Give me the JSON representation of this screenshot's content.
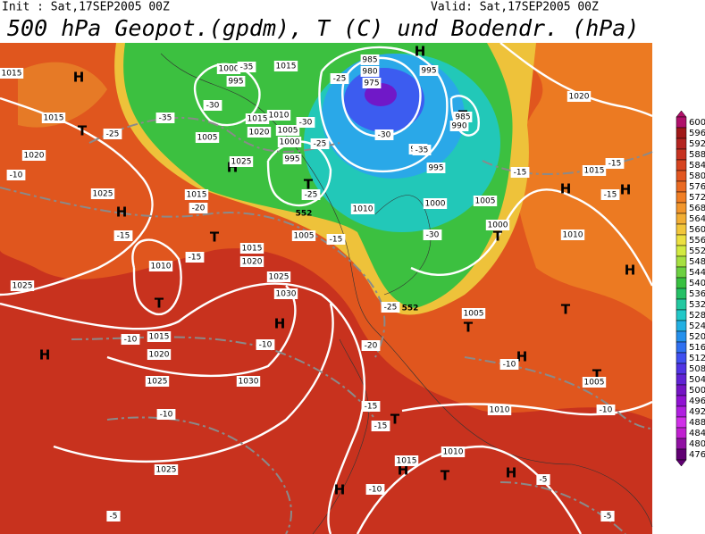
{
  "header": {
    "init": "Init : Sat,17SEP2005 00Z",
    "valid": "Valid: Sat,17SEP2005 00Z",
    "title": "500 hPa Geopot.(gpdm), T (C) und Bodendr. (hPa)"
  },
  "colorbar": {
    "labels": [
      "600",
      "596",
      "592",
      "588",
      "584",
      "580",
      "576",
      "572",
      "568",
      "564",
      "560",
      "556",
      "552",
      "548",
      "544",
      "540",
      "536",
      "532",
      "528",
      "524",
      "520",
      "516",
      "512",
      "508",
      "504",
      "500",
      "496",
      "492",
      "488",
      "484",
      "480",
      "476"
    ]
  },
  "map": {
    "labels": [
      "H",
      "T",
      "H",
      "T",
      "T",
      "H",
      "H",
      "H",
      "T",
      "H",
      "T",
      "T",
      "H",
      "H",
      "H",
      "T",
      "T",
      "H",
      "T",
      "T",
      "H",
      "T",
      "H",
      "H",
      "1015",
      "1015",
      "1000",
      "995",
      "1015",
      "1020",
      "1025",
      "1015",
      "1010",
      "1015",
      "1020",
      "1025",
      "1030",
      "1025",
      "1015",
      "1020",
      "1025",
      "1030",
      "1025",
      "985",
      "980",
      "975",
      "995",
      "985",
      "990",
      "1010",
      "1015",
      "1005",
      "1020",
      "1005",
      "1000",
      "995",
      "1025",
      "990",
      "995",
      "1000",
      "1005",
      "1010",
      "1005",
      "1000",
      "1010",
      "1020",
      "1015",
      "1005",
      "1010",
      "1005",
      "1015",
      "1010",
      "-35",
      "-30",
      "-35",
      "-25",
      "-10",
      "-20",
      "-15",
      "-15",
      "-10",
      "-10",
      "-10",
      "-5",
      "-25",
      "-30",
      "-25",
      "-30",
      "-35",
      "-25",
      "-15",
      "-30",
      "-15",
      "-15",
      "-15",
      "-25",
      "-20",
      "-15",
      "-15",
      "-10",
      "-10",
      "-10",
      "-5",
      "-5",
      "552",
      "552"
    ]
  }
}
